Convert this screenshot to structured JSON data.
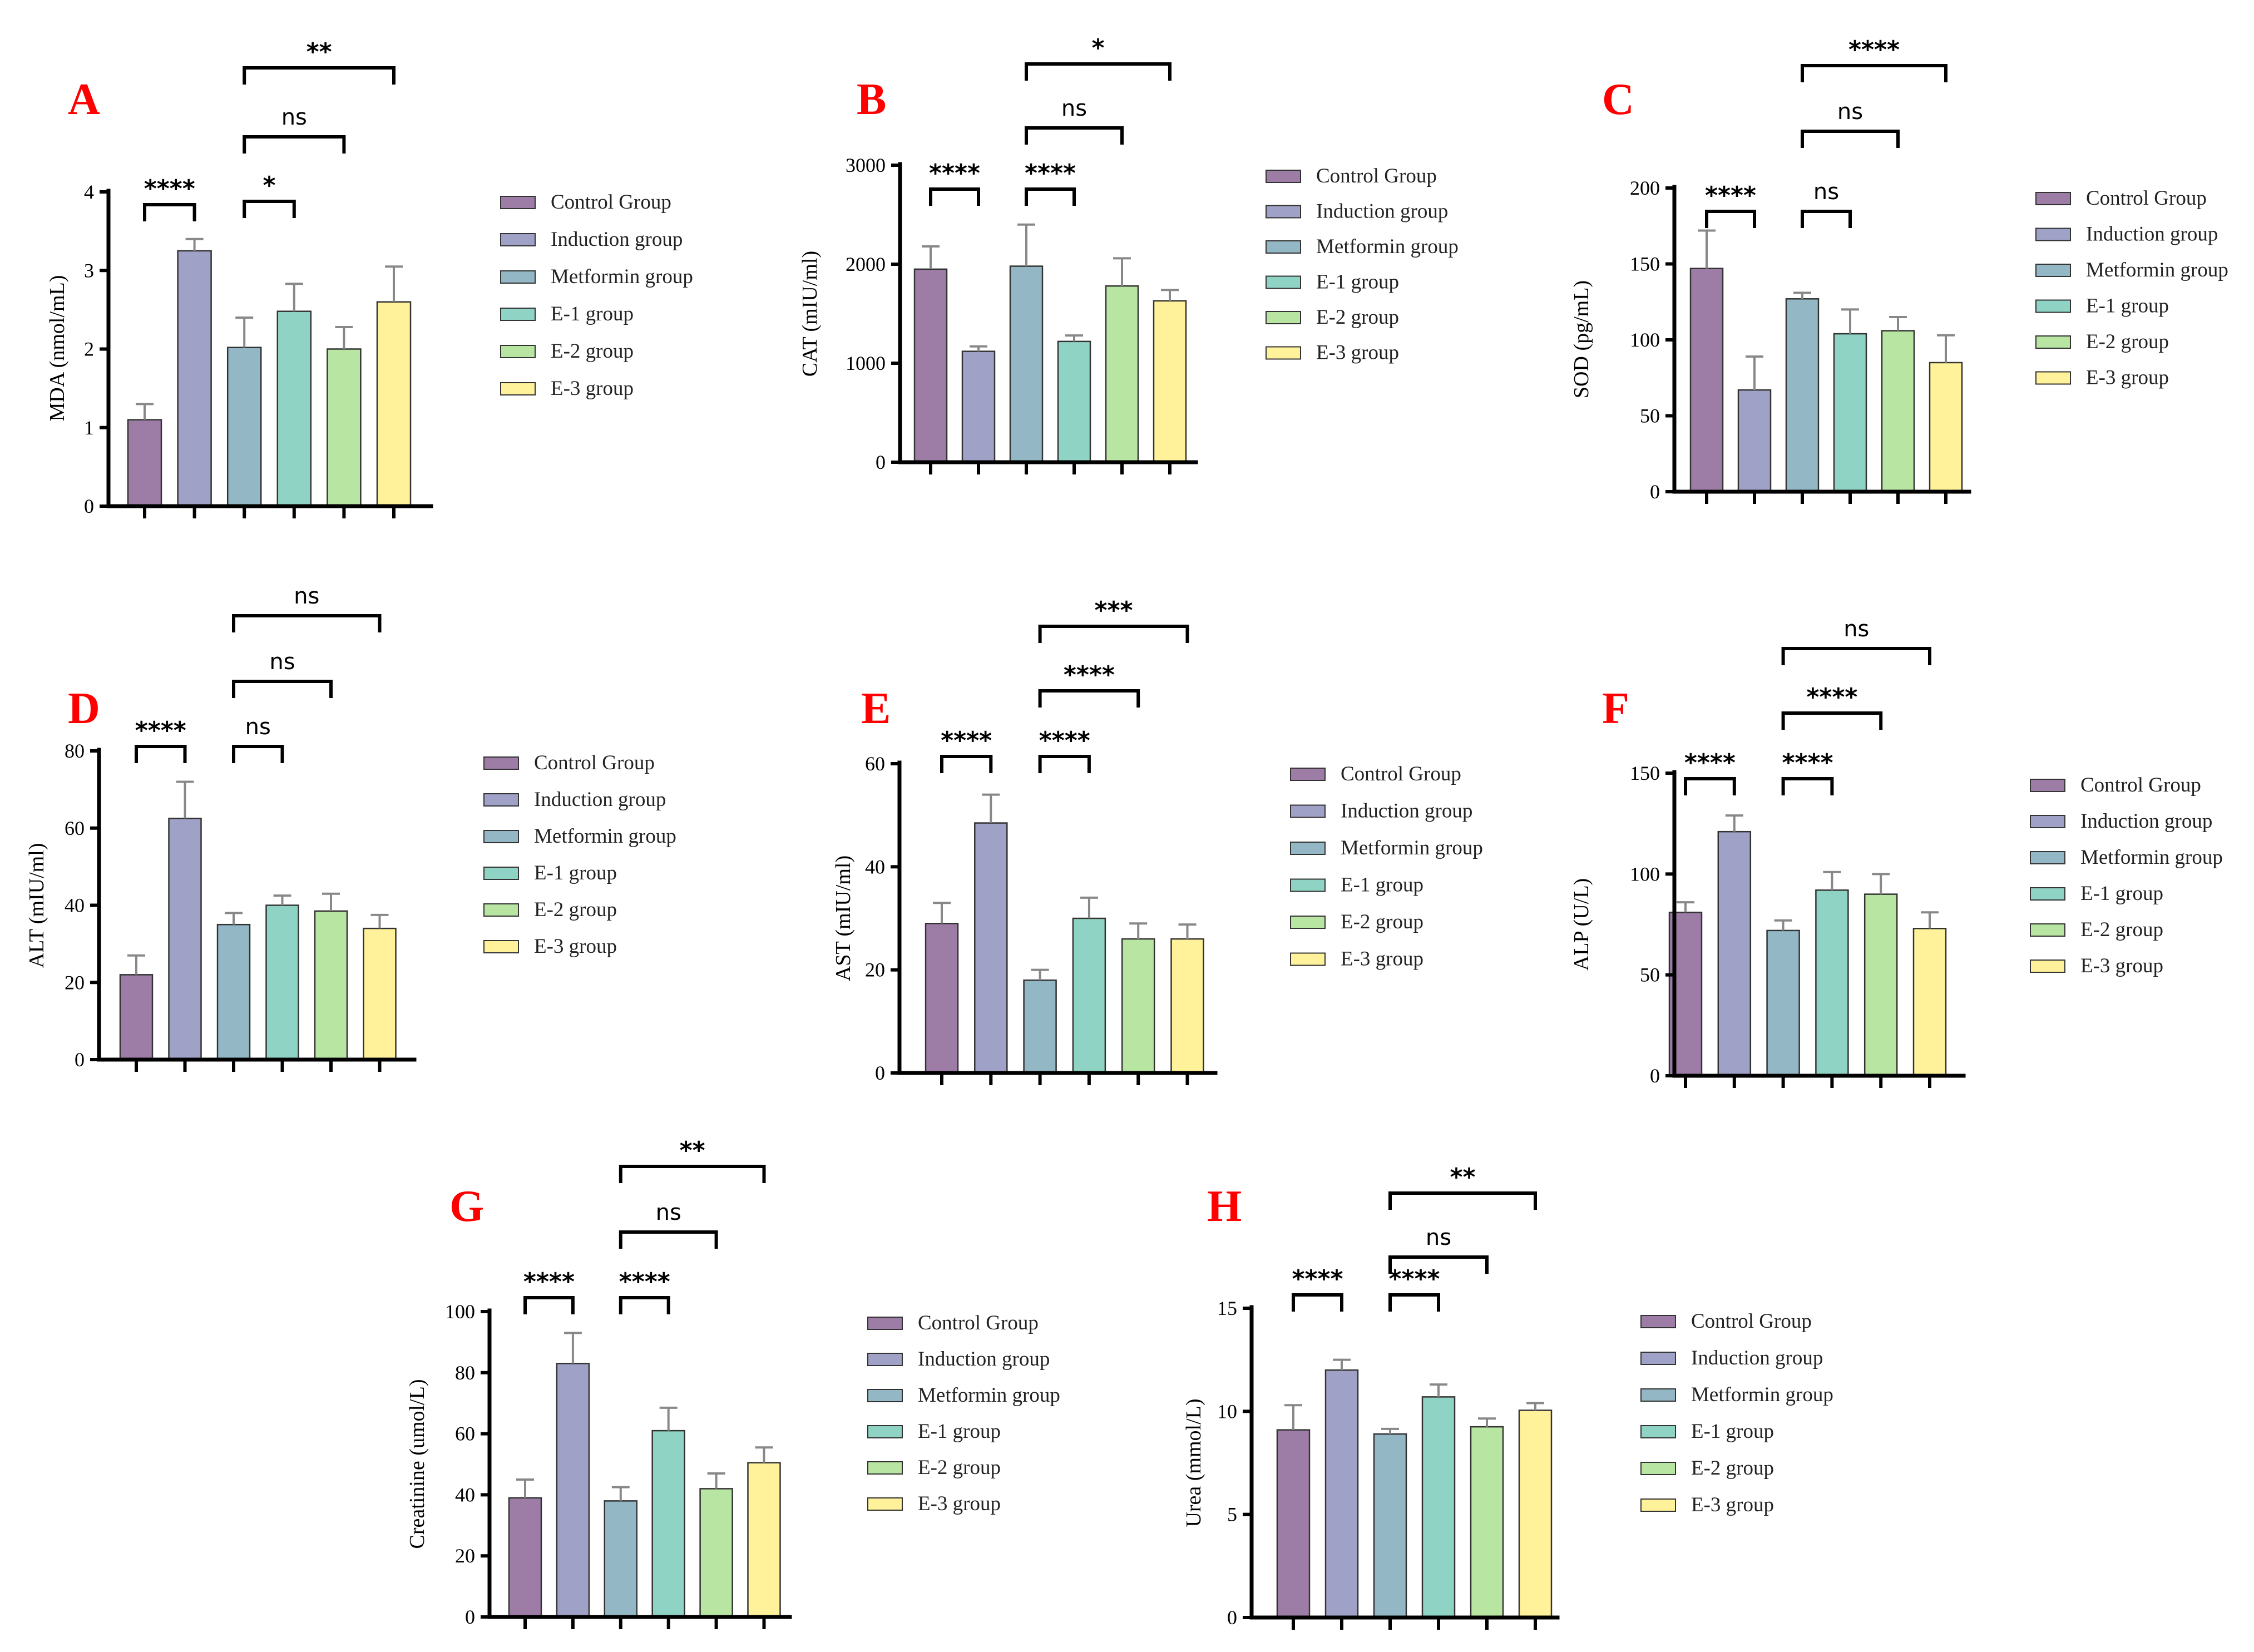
{
  "colors": [
    "#9d7ca6",
    "#9fa2c6",
    "#93b7c4",
    "#8ed3c3",
    "#b8e5a2",
    "#fff29a"
  ],
  "chart_data": [
    {
      "type": "bar",
      "label": "A",
      "ylabel": "MDA (nmol/mL)",
      "ylim": [
        0,
        4
      ],
      "yticks": [
        "0",
        "1",
        "2",
        "3",
        "4"
      ],
      "categories": [
        "Control Group",
        "Induction group",
        "Metformin group",
        "E-1 group",
        "E-2 group",
        "E-3 group"
      ],
      "values": [
        1.1,
        3.25,
        2.02,
        2.48,
        2.0,
        2.6
      ],
      "errors": [
        0.2,
        0.15,
        0.38,
        0.35,
        0.28,
        0.45
      ],
      "comparisons": [
        {
          "from": 0,
          "to": 1,
          "label": "****"
        },
        {
          "from": 2,
          "to": 3,
          "label": "*"
        },
        {
          "from": 2,
          "to": 4,
          "label": "ns"
        },
        {
          "from": 2,
          "to": 5,
          "label": "**"
        }
      ]
    },
    {
      "type": "bar",
      "label": "B",
      "ylabel": "CAT (mIU/ml)",
      "ylim": [
        0,
        3000
      ],
      "yticks": [
        "0",
        "1000",
        "2000",
        "3000"
      ],
      "categories": [
        "Control Group",
        "Induction group",
        "Metformin group",
        "E-1 group",
        "E-2 group",
        "E-3 group"
      ],
      "values": [
        1950,
        1120,
        1980,
        1220,
        1780,
        1630
      ],
      "errors": [
        230,
        50,
        420,
        60,
        280,
        110
      ],
      "comparisons": [
        {
          "from": 0,
          "to": 1,
          "label": "****"
        },
        {
          "from": 2,
          "to": 3,
          "label": "****"
        },
        {
          "from": 2,
          "to": 4,
          "label": "ns"
        },
        {
          "from": 2,
          "to": 5,
          "label": "*"
        }
      ]
    },
    {
      "type": "bar",
      "label": "C",
      "ylabel": "SOD (pg/mL)",
      "ylim": [
        0,
        200
      ],
      "yticks": [
        "0",
        "50",
        "100",
        "150",
        "200"
      ],
      "categories": [
        "Control Group",
        "Induction group",
        "Metformin group",
        "E-1 group",
        "E-2 group",
        "E-3 group"
      ],
      "values": [
        147,
        67,
        127,
        104,
        106,
        85
      ],
      "errors": [
        25,
        22,
        4,
        16,
        9,
        18
      ],
      "comparisons": [
        {
          "from": 0,
          "to": 1,
          "label": "****"
        },
        {
          "from": 2,
          "to": 3,
          "label": "ns"
        },
        {
          "from": 2,
          "to": 4,
          "label": "ns"
        },
        {
          "from": 2,
          "to": 5,
          "label": "****"
        }
      ]
    },
    {
      "type": "bar",
      "label": "D",
      "ylabel": "ALT (mIU/ml)",
      "ylim": [
        0,
        80
      ],
      "yticks": [
        "0",
        "20",
        "40",
        "60",
        "80"
      ],
      "categories": [
        "Control Group",
        "Induction group",
        "Metformin group",
        "E-1 group",
        "E-2 group",
        "E-3 group"
      ],
      "values": [
        22,
        62.5,
        35,
        40,
        38.5,
        34
      ],
      "errors": [
        5,
        9.5,
        3,
        2.5,
        4.5,
        3.5
      ],
      "comparisons": [
        {
          "from": 0,
          "to": 1,
          "label": "****"
        },
        {
          "from": 2,
          "to": 3,
          "label": "ns"
        },
        {
          "from": 2,
          "to": 4,
          "label": "ns"
        },
        {
          "from": 2,
          "to": 5,
          "label": "ns"
        }
      ]
    },
    {
      "type": "bar",
      "label": "E",
      "ylabel": "AST (mIU/ml)",
      "ylim": [
        0,
        60
      ],
      "yticks": [
        "0",
        "20",
        "40",
        "60"
      ],
      "categories": [
        "Control Group",
        "Induction group",
        "Metformin group",
        "E-1 group",
        "E-2 group",
        "E-3 group"
      ],
      "values": [
        29,
        48.5,
        18,
        30,
        26,
        26
      ],
      "errors": [
        4,
        5.5,
        2,
        4,
        3,
        2.8
      ],
      "comparisons": [
        {
          "from": 0,
          "to": 1,
          "label": "****"
        },
        {
          "from": 2,
          "to": 3,
          "label": "****"
        },
        {
          "from": 2,
          "to": 4,
          "label": "****"
        },
        {
          "from": 2,
          "to": 5,
          "label": "***"
        }
      ]
    },
    {
      "type": "bar",
      "label": "F",
      "ylabel": "ALP (U/L)",
      "ylim": [
        0,
        150
      ],
      "yticks": [
        "0",
        "50",
        "100",
        "150"
      ],
      "categories": [
        "Control Group",
        "Induction group",
        "Metformin group",
        "E-1 group",
        "E-2 group",
        "E-3 group"
      ],
      "values": [
        81,
        121,
        72,
        92,
        90,
        73
      ],
      "errors": [
        5,
        8,
        5,
        9,
        10,
        8
      ],
      "comparisons": [
        {
          "from": 0,
          "to": 1,
          "label": "****"
        },
        {
          "from": 2,
          "to": 3,
          "label": "****"
        },
        {
          "from": 2,
          "to": 4,
          "label": "****"
        },
        {
          "from": 2,
          "to": 5,
          "label": "ns"
        }
      ]
    },
    {
      "type": "bar",
      "label": "G",
      "ylabel": "Creatinine (umol/L)",
      "ylim": [
        0,
        100
      ],
      "yticks": [
        "0",
        "20",
        "40",
        "60",
        "80",
        "100"
      ],
      "categories": [
        "Control Group",
        "Induction group",
        "Metformin group",
        "E-1 group",
        "E-2 group",
        "E-3 group"
      ],
      "values": [
        39,
        83,
        38,
        61,
        42,
        50.5
      ],
      "errors": [
        6,
        10,
        4.5,
        7.5,
        5,
        5
      ],
      "comparisons": [
        {
          "from": 0,
          "to": 1,
          "label": "****"
        },
        {
          "from": 2,
          "to": 3,
          "label": "****"
        },
        {
          "from": 2,
          "to": 4,
          "label": "ns"
        },
        {
          "from": 2,
          "to": 5,
          "label": "**"
        }
      ]
    },
    {
      "type": "bar",
      "label": "H",
      "ylabel": "Urea (mmol/L)",
      "ylim": [
        0,
        15
      ],
      "yticks": [
        "0",
        "5",
        "10",
        "15"
      ],
      "categories": [
        "Control Group",
        "Induction group",
        "Metformin group",
        "E-1 group",
        "E-2 group",
        "E-3 group"
      ],
      "values": [
        9.1,
        12.0,
        8.9,
        10.7,
        9.25,
        10.05
      ],
      "errors": [
        1.2,
        0.5,
        0.25,
        0.6,
        0.4,
        0.35
      ],
      "comparisons": [
        {
          "from": 0,
          "to": 1,
          "label": "****"
        },
        {
          "from": 2,
          "to": 3,
          "label": "****"
        },
        {
          "from": 2,
          "to": 4,
          "label": "ns"
        },
        {
          "from": 2,
          "to": 5,
          "label": "**"
        }
      ]
    }
  ]
}
